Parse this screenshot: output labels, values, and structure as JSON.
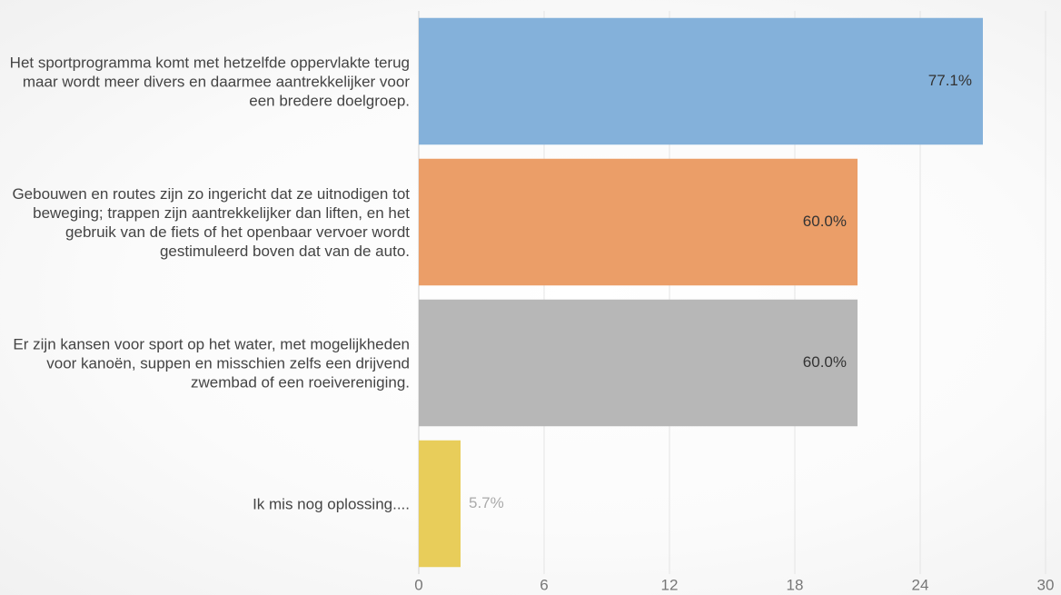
{
  "chart_data": {
    "type": "bar",
    "orientation": "horizontal",
    "categories": [
      "Het sportprogramma komt met hetzelfde oppervlakte terug maar wordt meer divers en daarmee aantrekkelijker voor een bredere doelgroep.",
      "Gebouwen en routes zijn zo ingericht dat ze uitnodigen tot beweging; trappen zijn aantrekkelijker dan liften, en het gebruik van de fiets of het openbaar vervoer wordt gestimuleerd boven dat van de auto.",
      "Er zijn kansen voor sport op het water, met mogelijkheden voor kanoën, suppen en misschien zelfs een drijvend zwembad of een roeivereniging.",
      "Ik mis nog oplossing...."
    ],
    "values": [
      27,
      21,
      21,
      2
    ],
    "percent_labels": [
      "77.1%",
      "60.0%",
      "60.0%",
      "5.7%"
    ],
    "colors": [
      "#84b1da",
      "#eb9e68",
      "#b7b7b7",
      "#e8cd5a"
    ],
    "xlim": [
      0,
      30
    ],
    "xticks": [
      0,
      6,
      12,
      18,
      24,
      30
    ],
    "grid": true
  }
}
